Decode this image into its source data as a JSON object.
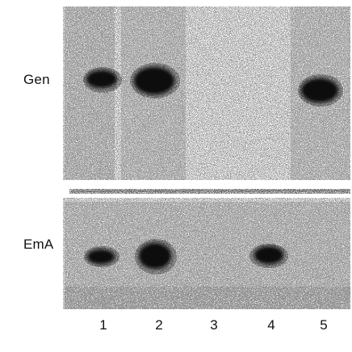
{
  "rows": {
    "top_label": "Gen",
    "bottom_label": "EmA"
  },
  "lanes": [
    "1",
    "2",
    "3",
    "4",
    "5"
  ],
  "bands": {
    "gen": [
      {
        "lane": "1",
        "intensity": 0.9
      },
      {
        "lane": "2",
        "intensity": 1.0
      },
      {
        "lane": "3",
        "intensity": 0.0
      },
      {
        "lane": "4",
        "intensity": 0.0
      },
      {
        "lane": "5",
        "intensity": 0.95
      }
    ],
    "ema": [
      {
        "lane": "1",
        "intensity": 0.85
      },
      {
        "lane": "2",
        "intensity": 1.0
      },
      {
        "lane": "3",
        "intensity": 0.0
      },
      {
        "lane": "4",
        "intensity": 0.8
      },
      {
        "lane": "5",
        "intensity": 0.0
      }
    ]
  },
  "colors": {
    "band": "#0a0a0a",
    "background_noise": "#6b6b6b"
  }
}
